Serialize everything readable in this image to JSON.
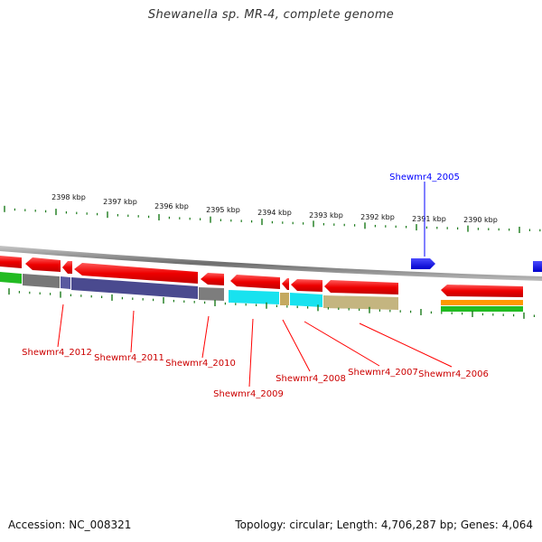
{
  "title": "Shewanella sp. MR-4, complete genome",
  "footer": {
    "accession": "Accession: NC_008321",
    "summary": "Topology: circular; Length: 4,706,287 bp; Genes: 4,064"
  },
  "colors": {
    "forward_gene": "#0000ff",
    "reverse_gene": "#ff0000",
    "tick": "#1a7a1a",
    "backbone": "#8a8a8a"
  },
  "kbp_labels": [
    "2398 kbp",
    "2397 kbp",
    "2396 kbp",
    "2395 kbp",
    "2394 kbp",
    "2393 kbp",
    "2392 kbp",
    "2391 kbp",
    "2390 kbp"
  ],
  "gene_labels": {
    "g2005": "Shewmr4_2005",
    "g2012": "Shewmr4_2012",
    "g2011": "Shewmr4_2011",
    "g2010": "Shewmr4_2010",
    "g2009": "Shewmr4_2009",
    "g2008": "Shewmr4_2008",
    "g2007": "Shewmr4_2007",
    "g2006": "Shewmr4_2006"
  }
}
